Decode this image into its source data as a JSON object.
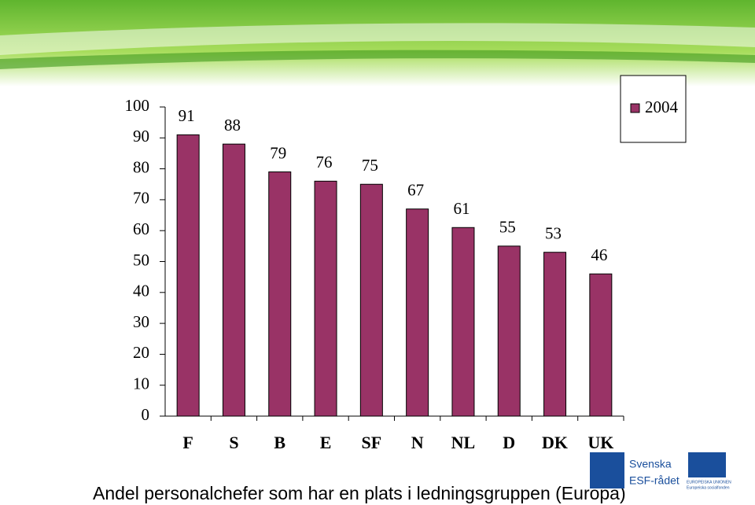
{
  "chart_data": {
    "type": "bar",
    "title": "Andel personalchefer som har en plats i ledningsgruppen (Europa)",
    "categories": [
      "F",
      "S",
      "B",
      "E",
      "SF",
      "N",
      "NL",
      "D",
      "DK",
      "UK"
    ],
    "series": [
      {
        "name": "2004",
        "color": "#993366",
        "values": [
          91,
          88,
          79,
          76,
          75,
          67,
          61,
          55,
          53,
          46
        ]
      }
    ],
    "ylim": [
      0,
      100
    ],
    "yticks": [
      0,
      10,
      20,
      30,
      40,
      50,
      60,
      70,
      80,
      90,
      100
    ],
    "grid": false,
    "legend": "top-right"
  },
  "logos": [
    "Svenska",
    "ESF-rådet",
    "EUROPEISKA UNIONEN",
    "Europeiska socialfonden"
  ]
}
